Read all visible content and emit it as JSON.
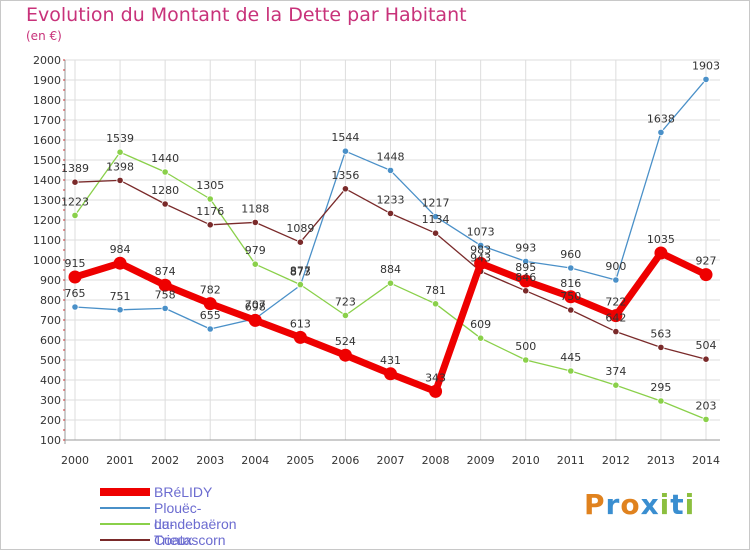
{
  "title": "Evolution du Montant de la Dette par Habitant",
  "unit": "(en €)",
  "logo": {
    "text": "Proxiti",
    "colors": [
      "#e0821e",
      "#3a8ed0",
      "#e0821e",
      "#3a8ed0",
      "#8cbf3f",
      "#3a8ed0",
      "#8cbf3f"
    ]
  },
  "chart_data": {
    "type": "line",
    "title": "Evolution du Montant de la Dette par Habitant",
    "ylabel": "(en €)",
    "xlabel": "",
    "x": [
      "2000",
      "2001",
      "2002",
      "2003",
      "2004",
      "2005",
      "2006",
      "2007",
      "2008",
      "2009",
      "2010",
      "2011",
      "2012",
      "2013",
      "2014"
    ],
    "ylim": [
      100,
      2000
    ],
    "yticks": [
      100,
      200,
      300,
      400,
      500,
      600,
      700,
      800,
      900,
      1000,
      1100,
      1200,
      1300,
      1400,
      1500,
      1600,
      1700,
      1800,
      1900,
      2000
    ],
    "grid": true,
    "legend_position": "bottom-left",
    "series": [
      {
        "name": "BRéLIDY",
        "color": "#ee0000",
        "values": [
          915,
          984,
          874,
          782,
          698,
          613,
          524,
          431,
          343,
          983,
          895,
          816,
          722,
          1035,
          927
        ]
      },
      {
        "name": "Plouëc-du-Trieux",
        "color": "#4a90c8",
        "values": [
          765,
          751,
          758,
          655,
          707,
          873,
          1544,
          1448,
          1217,
          1073,
          993,
          960,
          900,
          1638,
          1903
        ]
      },
      {
        "name": "Landebaëron",
        "color": "#8ad04a",
        "values": [
          1223,
          1539,
          1440,
          1305,
          979,
          877,
          723,
          884,
          781,
          609,
          500,
          445,
          374,
          295,
          203
        ]
      },
      {
        "name": "Coatascorn",
        "color": "#7a2a2a",
        "values": [
          1389,
          1398,
          1280,
          1176,
          1188,
          1089,
          1356,
          1233,
          1134,
          943,
          846,
          750,
          642,
          563,
          504
        ]
      }
    ]
  }
}
